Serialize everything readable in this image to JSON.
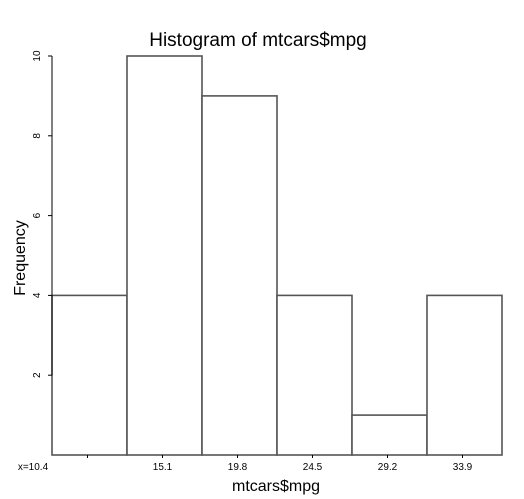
{
  "chart_data": {
    "type": "bar",
    "title": "Histogram of mtcars$mpg",
    "xlabel": "mtcars$mpg",
    "ylabel": "Frequency",
    "categories": [
      "10.4-15.1",
      "15.1-19.8",
      "19.8-24.5",
      "24.5-29.2",
      "29.2-33.9",
      "33.9-38.6"
    ],
    "values": [
      4,
      10,
      9,
      4,
      1,
      4
    ],
    "x_tick_labels": [
      "x=10.4",
      "15.1",
      "19.8",
      "24.5",
      "29.2",
      "33.9"
    ],
    "y_ticks": [
      2,
      4,
      6,
      8,
      10
    ],
    "ylim": [
      0,
      10
    ],
    "grid": false,
    "legend": "none",
    "bar_fill": "#ffffff",
    "bar_stroke": "#555555"
  }
}
